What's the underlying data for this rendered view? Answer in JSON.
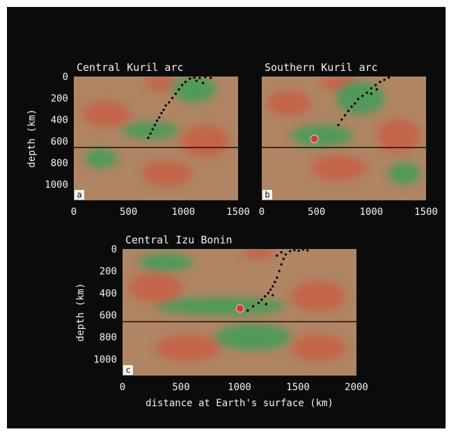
{
  "chart_data": [
    {
      "type": "heatmap",
      "panel_label": "a",
      "title": "Central Kuril  arc",
      "xlabel": "",
      "ylabel": "depth (km)",
      "xlim": [
        0,
        1500
      ],
      "ylim": [
        1150,
        0
      ],
      "xticks": [
        "0",
        "500",
        "1000",
        "1500"
      ],
      "yticks": [
        "0",
        "200",
        "400",
        "600",
        "800",
        "1000"
      ],
      "boundary_depth_km": 660,
      "hypocenters": [
        [
          680,
          570
        ],
        [
          700,
          530
        ],
        [
          720,
          490
        ],
        [
          740,
          450
        ],
        [
          760,
          410
        ],
        [
          780,
          380
        ],
        [
          800,
          340
        ],
        [
          820,
          310
        ],
        [
          840,
          270
        ],
        [
          870,
          240
        ],
        [
          900,
          200
        ],
        [
          930,
          160
        ],
        [
          960,
          120
        ],
        [
          990,
          80
        ],
        [
          1020,
          50
        ],
        [
          1060,
          20
        ],
        [
          1100,
          10
        ],
        [
          1150,
          15
        ],
        [
          1200,
          5
        ],
        [
          1250,
          12
        ],
        [
          1120,
          40
        ],
        [
          1180,
          60
        ]
      ],
      "anomalies": [
        {
          "type": "slow",
          "x": 780,
          "y": 60,
          "rx": 130,
          "ry": 70
        },
        {
          "type": "fast",
          "x": 1100,
          "y": 120,
          "rx": 200,
          "ry": 120
        },
        {
          "type": "fast",
          "x": 700,
          "y": 500,
          "rx": 260,
          "ry": 80
        },
        {
          "type": "fast",
          "x": 250,
          "y": 760,
          "rx": 150,
          "ry": 90
        },
        {
          "type": "slow",
          "x": 300,
          "y": 350,
          "rx": 220,
          "ry": 120
        },
        {
          "type": "slow",
          "x": 1200,
          "y": 600,
          "rx": 220,
          "ry": 150
        },
        {
          "type": "slow",
          "x": 850,
          "y": 900,
          "rx": 230,
          "ry": 120
        }
      ]
    },
    {
      "type": "heatmap",
      "panel_label": "b",
      "title": "Southern Kuril  arc",
      "xlabel": "",
      "ylabel": "",
      "xlim": [
        0,
        1500
      ],
      "ylim": [
        1150,
        0
      ],
      "xticks": [
        "0",
        "500",
        "1000",
        "1500"
      ],
      "yticks": [],
      "boundary_depth_km": 660,
      "hypocenters": [
        [
          700,
          450
        ],
        [
          730,
          400
        ],
        [
          760,
          360
        ],
        [
          790,
          320
        ],
        [
          820,
          280
        ],
        [
          850,
          250
        ],
        [
          880,
          210
        ],
        [
          920,
          180
        ],
        [
          960,
          150
        ],
        [
          1000,
          110
        ],
        [
          1040,
          80
        ],
        [
          1080,
          50
        ],
        [
          1120,
          30
        ],
        [
          1160,
          10
        ],
        [
          1050,
          120
        ],
        [
          1000,
          160
        ]
      ],
      "anomalies": [
        {
          "type": "slow",
          "x": 700,
          "y": 60,
          "rx": 160,
          "ry": 70
        },
        {
          "type": "fast",
          "x": 900,
          "y": 200,
          "rx": 220,
          "ry": 150
        },
        {
          "type": "fast",
          "x": 550,
          "y": 550,
          "rx": 280,
          "ry": 100
        },
        {
          "type": "slow",
          "x": 250,
          "y": 250,
          "rx": 200,
          "ry": 120
        },
        {
          "type": "slow",
          "x": 1250,
          "y": 550,
          "rx": 200,
          "ry": 150
        },
        {
          "type": "slow",
          "x": 700,
          "y": 850,
          "rx": 250,
          "ry": 120
        },
        {
          "type": "fast",
          "x": 1300,
          "y": 900,
          "rx": 150,
          "ry": 100
        }
      ],
      "marker": {
        "x": 480,
        "y": 580
      }
    },
    {
      "type": "heatmap",
      "panel_label": "c",
      "title": "Central Izu Bonin",
      "xlabel": "distance at Earth's surface (km)",
      "ylabel": "depth (km)",
      "xlim": [
        0,
        2150
      ],
      "ylim": [
        1150,
        0
      ],
      "xticks": [
        "0",
        "500",
        "1000",
        "1500",
        "2000"
      ],
      "yticks": [
        "0",
        "200",
        "400",
        "600",
        "800",
        "1000"
      ],
      "boundary_depth_km": 660,
      "hypocenters": [
        [
          1150,
          560
        ],
        [
          1200,
          520
        ],
        [
          1250,
          490
        ],
        [
          1280,
          460
        ],
        [
          1310,
          430
        ],
        [
          1340,
          400
        ],
        [
          1360,
          370
        ],
        [
          1380,
          340
        ],
        [
          1400,
          300
        ],
        [
          1420,
          260
        ],
        [
          1440,
          200
        ],
        [
          1460,
          140
        ],
        [
          1480,
          90
        ],
        [
          1500,
          50
        ],
        [
          1540,
          20
        ],
        [
          1580,
          10
        ],
        [
          1620,
          15
        ],
        [
          1660,
          5
        ],
        [
          1700,
          12
        ],
        [
          1420,
          60
        ],
        [
          1460,
          30
        ],
        [
          1380,
          420
        ],
        [
          1320,
          500
        ]
      ],
      "anomalies": [
        {
          "type": "slow",
          "x": 1250,
          "y": 40,
          "rx": 150,
          "ry": 50
        },
        {
          "type": "fast",
          "x": 900,
          "y": 520,
          "rx": 600,
          "ry": 80
        },
        {
          "type": "fast",
          "x": 1200,
          "y": 800,
          "rx": 350,
          "ry": 120
        },
        {
          "type": "fast",
          "x": 400,
          "y": 120,
          "rx": 250,
          "ry": 80
        },
        {
          "type": "slow",
          "x": 300,
          "y": 350,
          "rx": 250,
          "ry": 130
        },
        {
          "type": "slow",
          "x": 1800,
          "y": 430,
          "rx": 250,
          "ry": 140
        },
        {
          "type": "slow",
          "x": 600,
          "y": 900,
          "rx": 300,
          "ry": 120
        },
        {
          "type": "slow",
          "x": 1800,
          "y": 900,
          "rx": 250,
          "ry": 120
        }
      ],
      "marker": {
        "x": 1080,
        "y": 540
      }
    }
  ]
}
